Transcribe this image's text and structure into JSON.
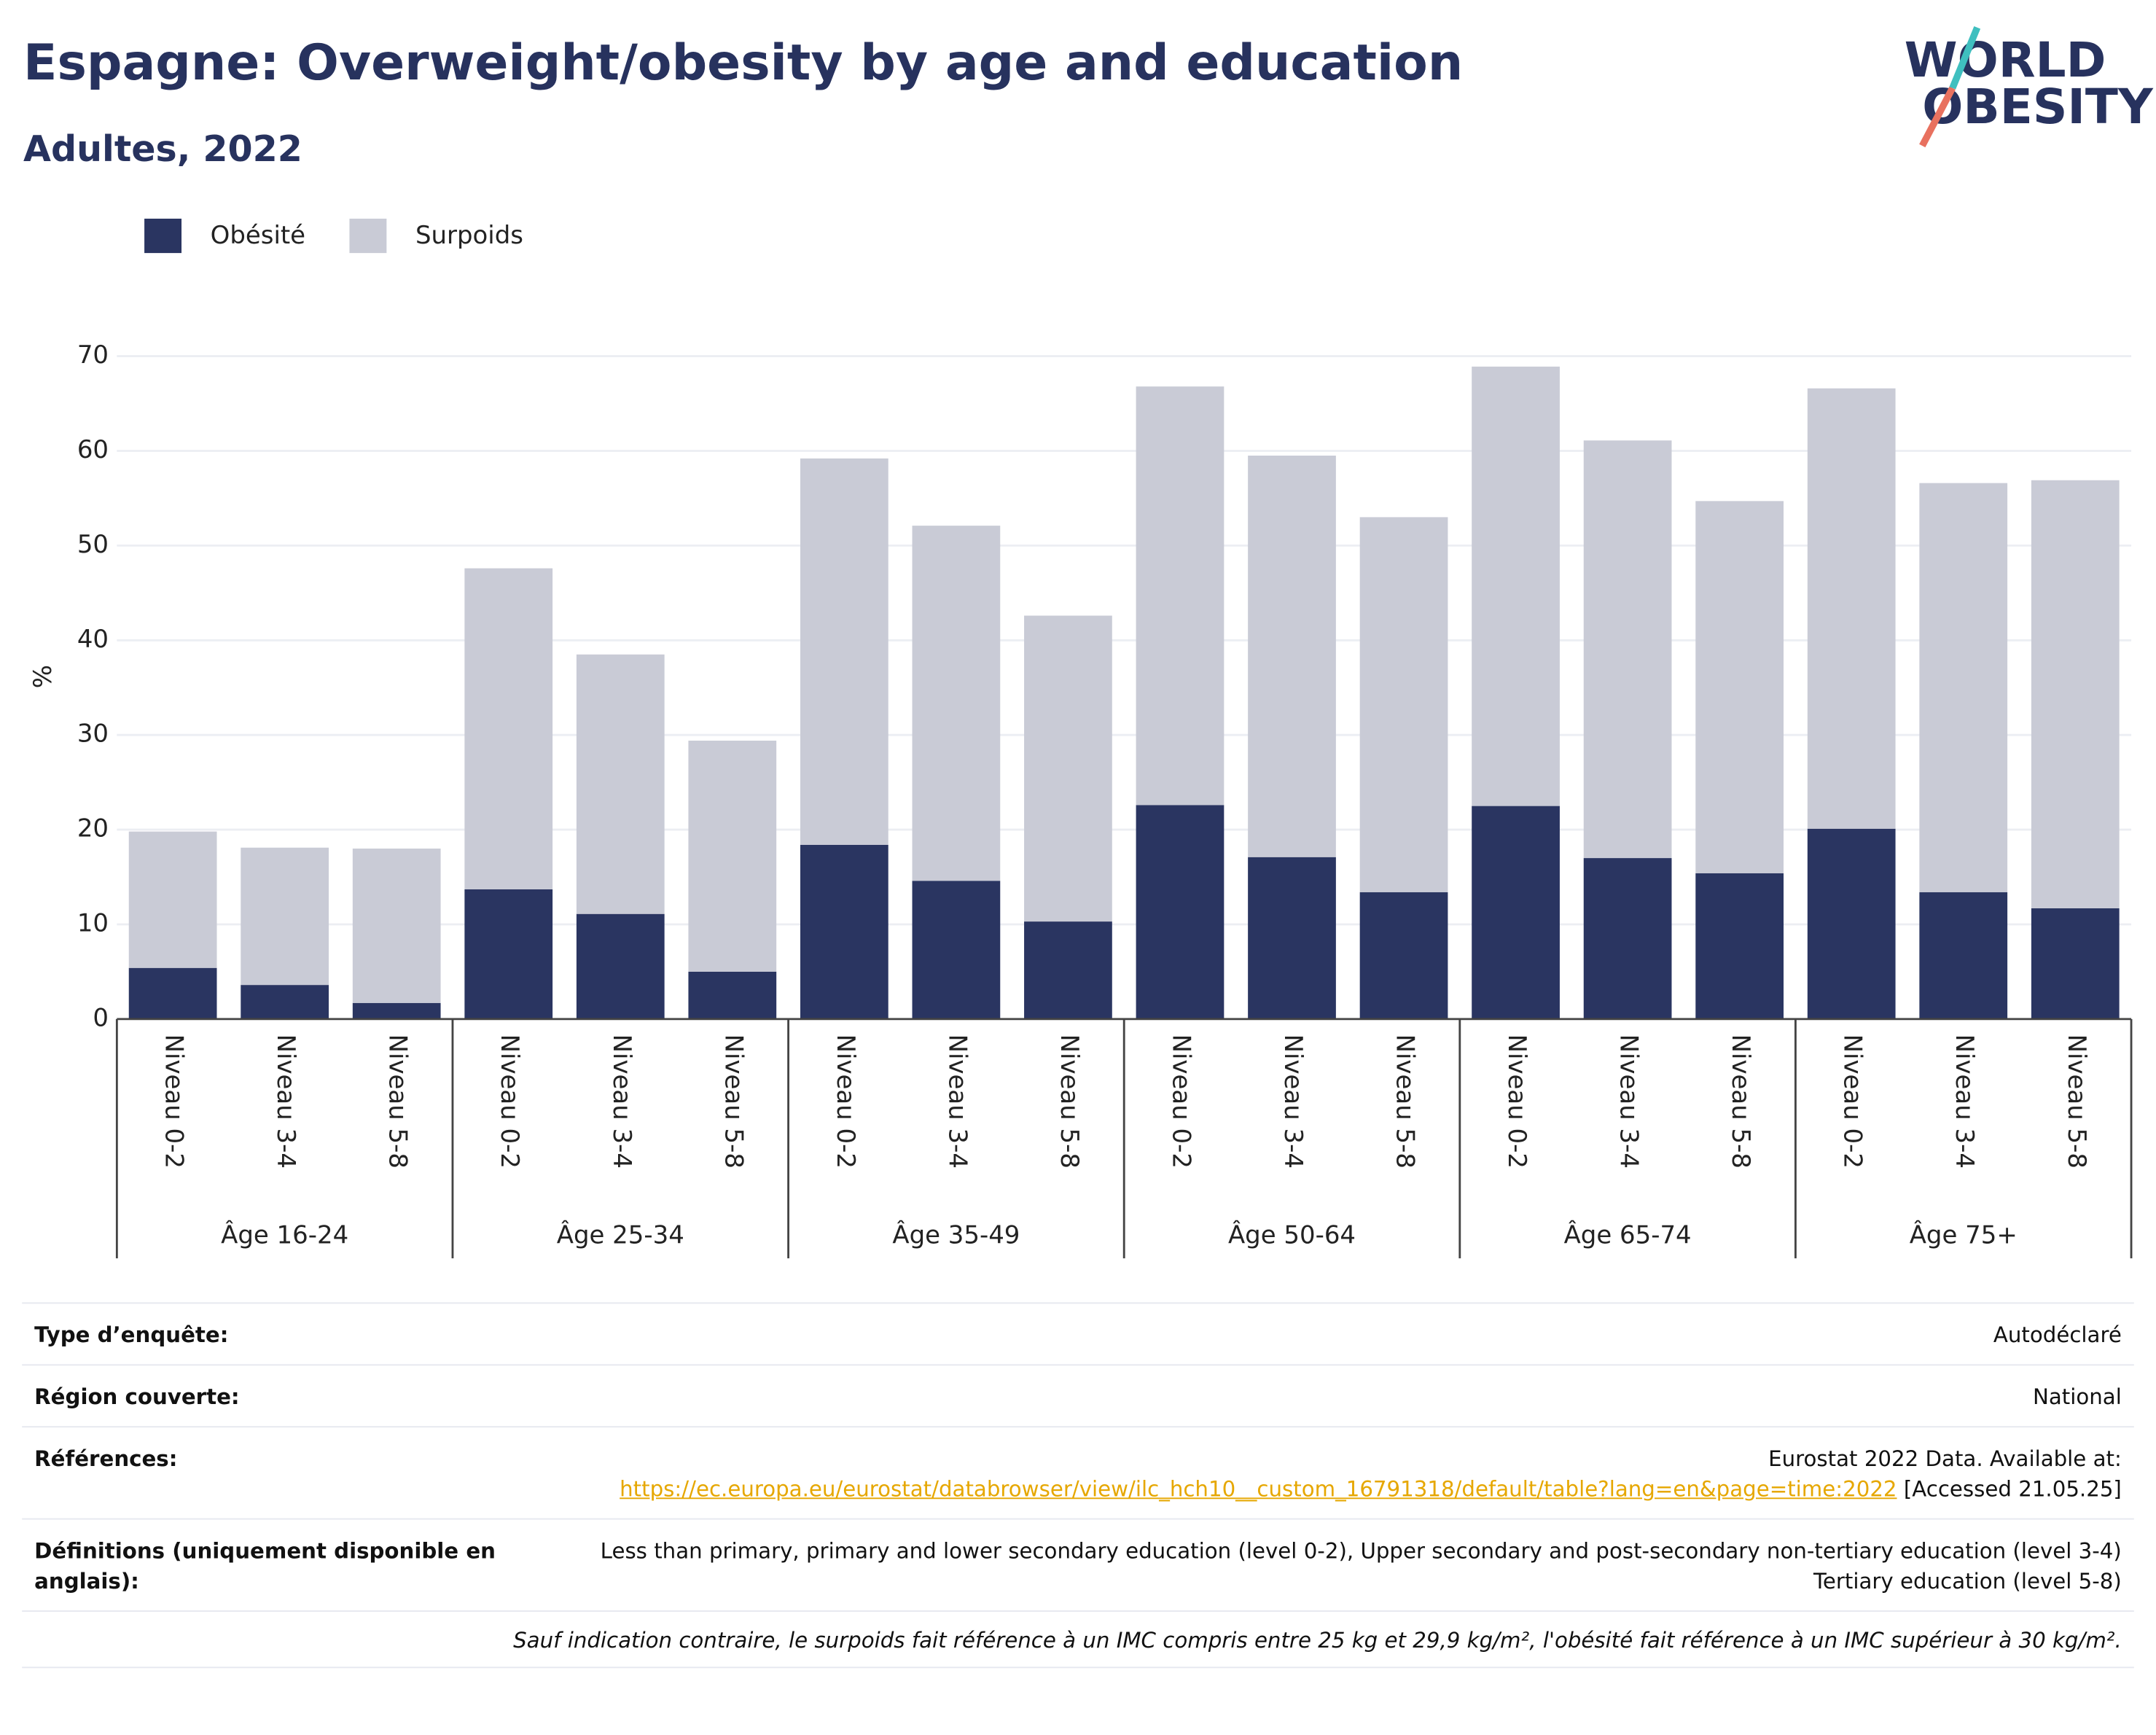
{
  "chart_data": {
    "type": "stacked_bar",
    "title": "Espagne: Overweight/obesity by age and education",
    "subtitle": "Adultes, 2022",
    "y_label": "%",
    "categories": [
      "Niveau 0-2",
      "Niveau 3-4",
      "Niveau 5-8",
      "Niveau 0-2",
      "Niveau 3-4",
      "Niveau 5-8",
      "Niveau 0-2",
      "Niveau 3-4",
      "Niveau 5-8",
      "Niveau 0-2",
      "Niveau 3-4",
      "Niveau 5-8",
      "Niveau 0-2",
      "Niveau 3-4",
      "Niveau 5-8",
      "Niveau 0-2",
      "Niveau 3-4",
      "Niveau 5-8"
    ],
    "groups": [
      "Âge 16-24",
      "Âge 25-34",
      "Âge 35-49",
      "Âge 50-64",
      "Âge 65-74",
      "Âge 75+"
    ],
    "series": [
      {
        "name": "Obésité",
        "color": "#2a3561",
        "values": [
          5.4,
          3.6,
          1.7,
          13.7,
          11.1,
          5.0,
          18.4,
          14.6,
          10.3,
          22.6,
          17.1,
          13.4,
          22.5,
          17.0,
          15.4,
          20.1,
          13.4,
          11.7
        ]
      },
      {
        "name": "Surpoids",
        "color": "#c9cbd6",
        "values": [
          14.4,
          14.5,
          16.3,
          33.9,
          27.4,
          24.4,
          40.8,
          37.5,
          32.3,
          44.2,
          42.4,
          39.6,
          46.4,
          44.1,
          39.3,
          46.5,
          43.2,
          45.2
        ]
      }
    ],
    "ylim": [
      0,
      70
    ],
    "yticks": [
      0,
      10,
      20,
      30,
      40,
      50,
      60,
      70
    ],
    "grid": true,
    "legend": "top-left"
  },
  "logo": {
    "line1": "WORLD",
    "line2": "OBESITY"
  },
  "footer": {
    "rows": [
      {
        "label": "Type d’enquête:",
        "value": "Autodéclaré"
      },
      {
        "label": "Région couverte:",
        "value": "National"
      },
      {
        "label": "Références:",
        "value": "Eurostat 2022 Data. Available at:",
        "link": "https://ec.europa.eu/eurostat/databrowser/view/ilc_hch10__custom_16791318/default/table?lang=en&page=time:2022",
        "suffix": "[Accessed 21.05.25]"
      },
      {
        "label": "Définitions (uniquement disponible en anglais):",
        "value": "Less than primary, primary and lower secondary education (level 0-2), Upper secondary and post-secondary non-tertiary education (level 3-4) Tertiary education (level 5-8)"
      }
    ],
    "note": "Sauf indication contraire, le surpoids fait référence à un IMC compris entre 25 kg et 29,9 kg/m², l'obésité fait référence à un IMC supérieur à 30 kg/m²."
  }
}
